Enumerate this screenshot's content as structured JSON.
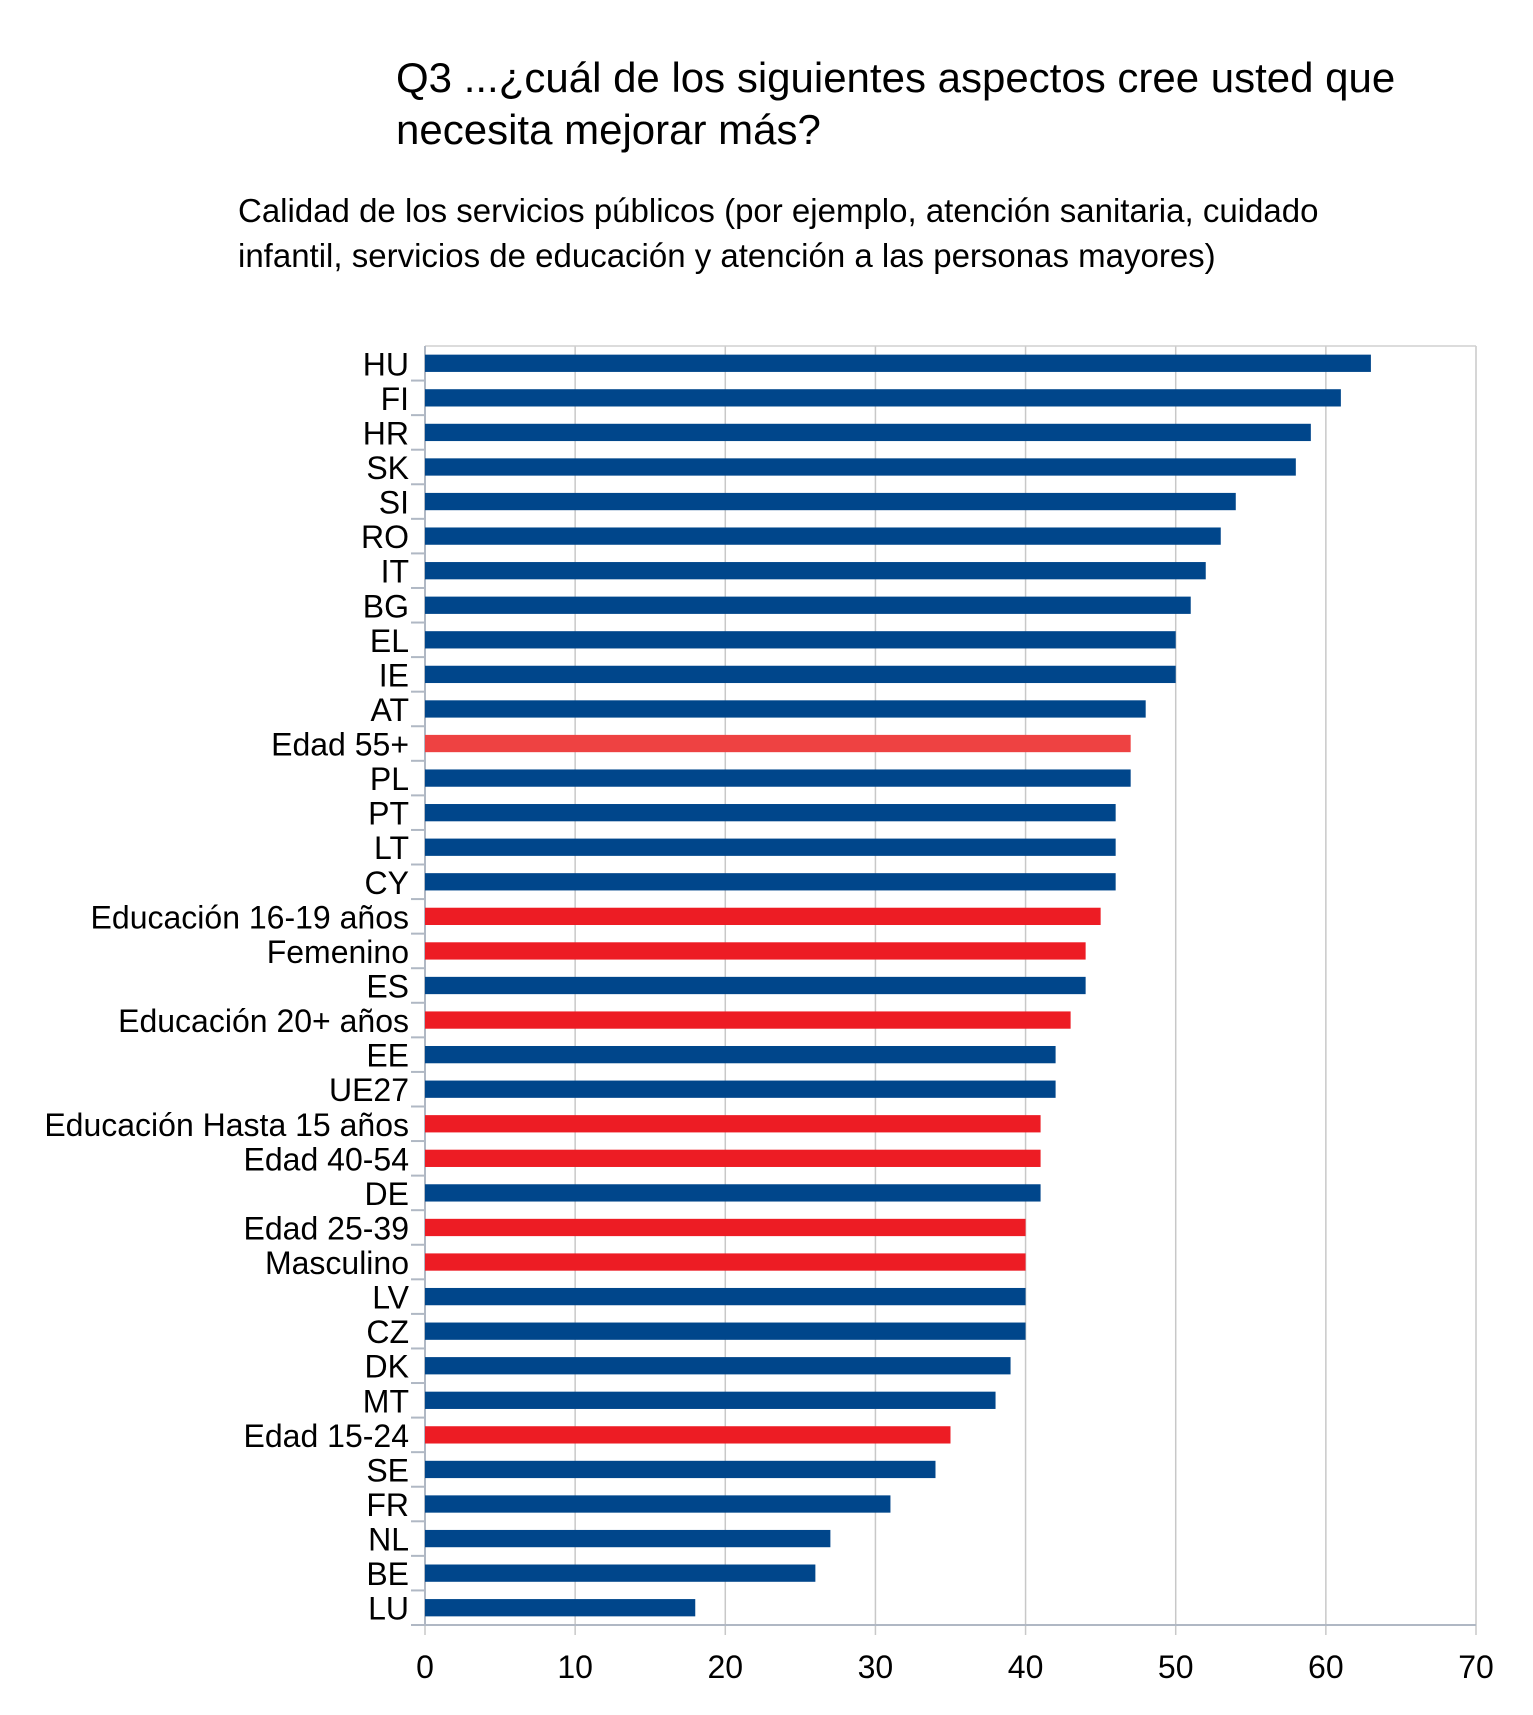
{
  "chart_data": {
    "type": "bar",
    "orientation": "horizontal",
    "title": "Q3 ...¿cuál de los siguientes aspectos cree usted que necesita mejorar más?",
    "subtitle": "Calidad de los servicios públicos (por ejemplo, atención sanitaria, cuidado infantil, servicios de educación y atención a las personas mayores)",
    "xlabel": "",
    "ylabel": "",
    "xlim": [
      0,
      70
    ],
    "xticks": [
      0,
      10,
      20,
      30,
      40,
      50,
      60,
      70
    ],
    "grid": true,
    "legend": "none",
    "colors": {
      "country": "#00468B",
      "group": "#ED1C24",
      "highlight": "#EE4242"
    },
    "categories": [
      "HU",
      "FI",
      "HR",
      "SK",
      "SI",
      "RO",
      "IT",
      "BG",
      "EL",
      "IE",
      "AT",
      "Edad 55+",
      "PL",
      "PT",
      "LT",
      "CY",
      "Educación 16-19 años",
      "Femenino",
      "ES",
      "Educación 20+ años",
      "EE",
      "UE27",
      "Educación Hasta 15 años",
      "Edad 40-54",
      "DE",
      "Edad 25-39",
      "Masculino",
      "LV",
      "CZ",
      "DK",
      "MT",
      "Edad 15-24",
      "SE",
      "FR",
      "NL",
      "BE",
      "LU"
    ],
    "values": [
      63,
      61,
      59,
      58,
      54,
      53,
      52,
      51,
      50,
      50,
      48,
      47,
      47,
      46,
      46,
      46,
      45,
      44,
      44,
      43,
      42,
      42,
      41,
      41,
      41,
      40,
      40,
      40,
      40,
      39,
      38,
      35,
      34,
      31,
      27,
      26,
      18
    ],
    "bar_color_keys": [
      "country",
      "country",
      "country",
      "country",
      "country",
      "country",
      "country",
      "country",
      "country",
      "country",
      "country",
      "highlight",
      "country",
      "country",
      "country",
      "country",
      "group",
      "group",
      "country",
      "group",
      "country",
      "country",
      "group",
      "group",
      "country",
      "group",
      "group",
      "country",
      "country",
      "country",
      "country",
      "group",
      "country",
      "country",
      "country",
      "country",
      "country"
    ]
  }
}
